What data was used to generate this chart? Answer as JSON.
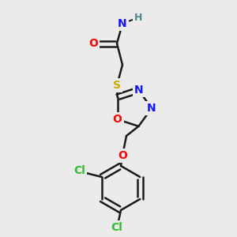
{
  "background_color": "#ebebeb",
  "bond_color": "#1a1a1a",
  "bond_width": 1.8,
  "atom_colors": {
    "O": "#ff0000",
    "N": "#1414ff",
    "S": "#ccaa00",
    "Cl": "#33bb33",
    "H": "#4a8a8a",
    "C": "#1a1a1a"
  },
  "font_size": 10,
  "fig_size": [
    3.0,
    3.0
  ],
  "dpi": 100
}
